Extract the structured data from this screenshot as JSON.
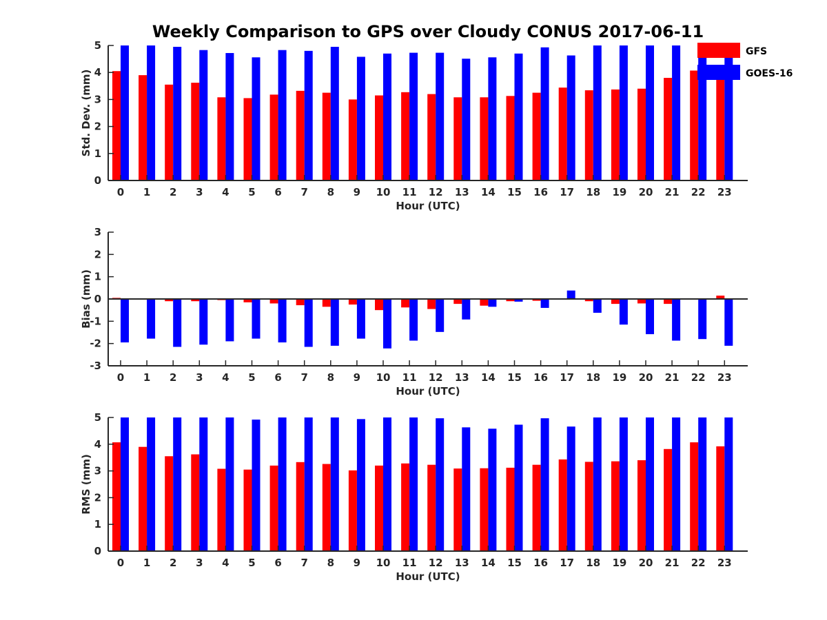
{
  "chart_data": {
    "title": "Weekly Comparison to GPS over Cloudy CONUS 2017-06-11",
    "legend": {
      "placement": "top-right",
      "entries": [
        {
          "name": "GFS",
          "color": "#ff0000"
        },
        {
          "name": "GOES-16",
          "color": "#0000ff"
        }
      ]
    },
    "panels": [
      {
        "type": "bar",
        "ylabel": "Std. Dev. (mm)",
        "xlabel": "Hour (UTC)",
        "ylim": [
          0,
          5
        ],
        "yticks": [
          0,
          1,
          2,
          3,
          4,
          5
        ],
        "categories": [
          "0",
          "1",
          "2",
          "3",
          "4",
          "5",
          "6",
          "7",
          "8",
          "9",
          "10",
          "11",
          "12",
          "13",
          "14",
          "15",
          "16",
          "17",
          "18",
          "19",
          "20",
          "21",
          "22",
          "23"
        ],
        "series": [
          {
            "name": "GFS",
            "color": "#ff0000",
            "values": [
              4.05,
              3.9,
              3.55,
              3.62,
              3.08,
              3.05,
              3.18,
              3.32,
              3.25,
              3.0,
              3.15,
              3.27,
              3.2,
              3.08,
              3.08,
              3.13,
              3.25,
              3.44,
              3.34,
              3.37,
              3.4,
              3.8,
              4.07,
              3.92
            ]
          },
          {
            "name": "GOES-16",
            "color": "#0000ff",
            "values": [
              5.0,
              5.0,
              4.95,
              4.83,
              4.72,
              4.56,
              4.83,
              4.8,
              4.95,
              4.58,
              4.7,
              4.73,
              4.73,
              4.51,
              4.56,
              4.7,
              4.93,
              4.63,
              5.0,
              5.0,
              5.0,
              5.0,
              5.0,
              5.0
            ]
          }
        ]
      },
      {
        "type": "bar",
        "ylabel": "Bias (mm)",
        "xlabel": "Hour (UTC)",
        "ylim": [
          -3,
          3
        ],
        "yticks": [
          -3,
          -2,
          -1,
          0,
          1,
          2,
          3
        ],
        "zero_line": true,
        "categories": [
          "0",
          "1",
          "2",
          "3",
          "4",
          "5",
          "6",
          "7",
          "8",
          "9",
          "10",
          "11",
          "12",
          "13",
          "14",
          "15",
          "16",
          "17",
          "18",
          "19",
          "20",
          "21",
          "22",
          "23"
        ],
        "series": [
          {
            "name": "GFS",
            "color": "#ff0000",
            "values": [
              0.05,
              -0.02,
              -0.1,
              -0.1,
              -0.05,
              -0.15,
              -0.2,
              -0.28,
              -0.35,
              -0.25,
              -0.5,
              -0.38,
              -0.45,
              -0.22,
              -0.3,
              -0.1,
              -0.08,
              -0.03,
              -0.1,
              -0.22,
              -0.2,
              -0.22,
              -0.02,
              0.15
            ]
          },
          {
            "name": "GOES-16",
            "color": "#0000ff",
            "values": [
              -1.95,
              -1.78,
              -2.15,
              -2.05,
              -1.9,
              -1.78,
              -1.95,
              -2.15,
              -2.1,
              -1.78,
              -2.22,
              -1.87,
              -1.48,
              -0.92,
              -0.35,
              -0.12,
              -0.4,
              0.38,
              -0.62,
              -1.15,
              -1.58,
              -1.87,
              -1.8,
              -2.1
            ]
          }
        ]
      },
      {
        "type": "bar",
        "ylabel": "RMS (mm)",
        "xlabel": "Hour (UTC)",
        "ylim": [
          0,
          5
        ],
        "yticks": [
          0,
          1,
          2,
          3,
          4,
          5
        ],
        "categories": [
          "0",
          "1",
          "2",
          "3",
          "4",
          "5",
          "6",
          "7",
          "8",
          "9",
          "10",
          "11",
          "12",
          "13",
          "14",
          "15",
          "16",
          "17",
          "18",
          "19",
          "20",
          "21",
          "22",
          "23"
        ],
        "series": [
          {
            "name": "GFS",
            "color": "#ff0000",
            "values": [
              4.07,
              3.9,
              3.55,
              3.62,
              3.08,
              3.05,
              3.2,
              3.33,
              3.26,
              3.02,
              3.2,
              3.28,
              3.23,
              3.09,
              3.1,
              3.12,
              3.23,
              3.43,
              3.34,
              3.36,
              3.4,
              3.82,
              4.07,
              3.92
            ]
          },
          {
            "name": "GOES-16",
            "color": "#0000ff",
            "values": [
              5.0,
              5.0,
              5.0,
              5.0,
              5.0,
              4.92,
              5.0,
              5.0,
              5.0,
              4.94,
              5.0,
              5.0,
              4.97,
              4.63,
              4.58,
              4.73,
              4.97,
              4.66,
              5.0,
              5.0,
              5.0,
              5.0,
              5.0,
              5.0
            ]
          }
        ]
      }
    ]
  }
}
